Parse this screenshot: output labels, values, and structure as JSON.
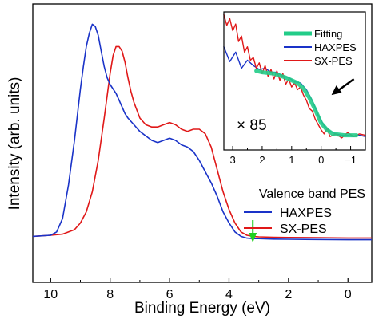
{
  "chart_data": [
    {
      "type": "line",
      "xlabel": "Binding Energy (eV)",
      "ylabel": "Intensity (arb. units)",
      "xlim": [
        10.6,
        -0.8
      ],
      "ylim": [
        0,
        1.0
      ],
      "x_ticks": [
        10,
        8,
        6,
        4,
        2,
        0
      ],
      "x_tick_labels": [
        "10",
        "8",
        "6",
        "4",
        "2",
        "0"
      ],
      "legend_title": "Valence band PES",
      "legend_position": "bottom-right",
      "series": [
        {
          "name": "HAXPES",
          "color": "#1a33c8",
          "x": [
            10.6,
            10.0,
            9.8,
            9.6,
            9.4,
            9.2,
            9.0,
            8.9,
            8.8,
            8.7,
            8.6,
            8.5,
            8.4,
            8.3,
            8.2,
            8.1,
            8.0,
            7.9,
            7.8,
            7.7,
            7.6,
            7.5,
            7.4,
            7.2,
            7.0,
            6.8,
            6.6,
            6.4,
            6.2,
            6.0,
            5.8,
            5.6,
            5.4,
            5.2,
            5.0,
            4.8,
            4.6,
            4.4,
            4.2,
            4.0,
            3.8,
            3.6,
            3.4,
            3.2,
            3.0,
            2.5,
            2.0,
            1.0,
            0.0,
            -0.8
          ],
          "y": [
            0.02,
            0.025,
            0.04,
            0.1,
            0.25,
            0.45,
            0.68,
            0.78,
            0.87,
            0.93,
            0.97,
            0.96,
            0.92,
            0.85,
            0.78,
            0.73,
            0.7,
            0.68,
            0.66,
            0.63,
            0.6,
            0.57,
            0.55,
            0.52,
            0.49,
            0.47,
            0.45,
            0.44,
            0.45,
            0.46,
            0.45,
            0.43,
            0.42,
            0.4,
            0.36,
            0.31,
            0.26,
            0.2,
            0.13,
            0.08,
            0.04,
            0.02,
            0.012,
            0.01,
            0.01,
            0.008,
            0.007,
            0.006,
            0.005,
            0.005
          ]
        },
        {
          "name": "SX-PES",
          "color": "#e01818",
          "x": [
            10.6,
            10.0,
            9.6,
            9.2,
            9.0,
            8.8,
            8.6,
            8.4,
            8.2,
            8.0,
            7.9,
            7.8,
            7.7,
            7.6,
            7.5,
            7.4,
            7.3,
            7.2,
            7.0,
            6.8,
            6.6,
            6.4,
            6.2,
            6.0,
            5.8,
            5.6,
            5.4,
            5.2,
            5.0,
            4.8,
            4.6,
            4.4,
            4.2,
            4.0,
            3.8,
            3.6,
            3.4,
            3.2,
            3.0,
            2.5,
            2.0,
            1.0,
            0.0,
            -0.8
          ],
          "y": [
            0.02,
            0.025,
            0.03,
            0.05,
            0.08,
            0.13,
            0.22,
            0.36,
            0.55,
            0.75,
            0.83,
            0.87,
            0.87,
            0.85,
            0.8,
            0.73,
            0.67,
            0.62,
            0.55,
            0.52,
            0.51,
            0.51,
            0.52,
            0.53,
            0.52,
            0.5,
            0.49,
            0.5,
            0.5,
            0.48,
            0.42,
            0.32,
            0.22,
            0.14,
            0.08,
            0.04,
            0.025,
            0.02,
            0.018,
            0.016,
            0.015,
            0.014,
            0.013,
            0.013
          ]
        }
      ],
      "annotations": [
        {
          "type": "arrow",
          "color": "#20d020",
          "x": 3.2,
          "direction": "down"
        }
      ]
    },
    {
      "type": "line",
      "role": "inset",
      "xlim": [
        3.3,
        -1.5
      ],
      "ylim": [
        0,
        1.0
      ],
      "x_ticks": [
        3,
        2,
        1,
        0,
        -1
      ],
      "x_tick_labels": [
        "3",
        "2",
        "1",
        "0",
        "−1"
      ],
      "scale_label": "× 85",
      "legend_position": "top-right",
      "series": [
        {
          "name": "Fitting",
          "color": "#22cc88",
          "x": [
            2.2,
            2.0,
            1.6,
            1.2,
            1.0,
            0.8,
            0.6,
            0.4,
            0.2,
            0.0,
            -0.2,
            -0.4,
            -0.8,
            -1.2
          ],
          "y": [
            0.56,
            0.55,
            0.54,
            0.51,
            0.49,
            0.47,
            0.43,
            0.36,
            0.27,
            0.17,
            0.12,
            0.09,
            0.08,
            0.08
          ]
        },
        {
          "name": "HAXPES",
          "color": "#1a33c8",
          "x": [
            3.3,
            3.1,
            2.9,
            2.7,
            2.5,
            2.3,
            2.1,
            1.9,
            1.7,
            1.5,
            1.3,
            1.1,
            0.9,
            0.7,
            0.5,
            0.3,
            0.1,
            -0.1,
            -0.3,
            -0.5,
            -0.7,
            -0.9,
            -1.1,
            -1.3,
            -1.5
          ],
          "y": [
            0.74,
            0.63,
            0.7,
            0.58,
            0.64,
            0.6,
            0.57,
            0.58,
            0.55,
            0.55,
            0.52,
            0.51,
            0.48,
            0.47,
            0.42,
            0.34,
            0.23,
            0.15,
            0.11,
            0.09,
            0.08,
            0.08,
            0.07,
            0.08,
            0.07
          ]
        },
        {
          "name": "SX-PES",
          "color": "#e01818",
          "x": [
            3.3,
            3.2,
            3.1,
            3.0,
            2.9,
            2.8,
            2.7,
            2.6,
            2.5,
            2.4,
            2.3,
            2.2,
            2.1,
            2.0,
            1.9,
            1.8,
            1.7,
            1.6,
            1.5,
            1.4,
            1.3,
            1.2,
            1.1,
            1.0,
            0.9,
            0.8,
            0.7,
            0.6,
            0.5,
            0.4,
            0.3,
            0.2,
            0.1,
            0.0,
            -0.1,
            -0.2,
            -0.3,
            -0.5,
            -0.7,
            -0.9,
            -1.1,
            -1.3,
            -1.5
          ],
          "y": [
            0.98,
            0.9,
            0.95,
            0.86,
            0.91,
            0.78,
            0.82,
            0.7,
            0.74,
            0.64,
            0.66,
            0.58,
            0.62,
            0.54,
            0.6,
            0.52,
            0.57,
            0.5,
            0.56,
            0.49,
            0.54,
            0.46,
            0.5,
            0.44,
            0.47,
            0.42,
            0.44,
            0.38,
            0.34,
            0.28,
            0.26,
            0.2,
            0.16,
            0.12,
            0.09,
            0.13,
            0.07,
            0.09,
            0.06,
            0.1,
            0.07,
            0.09,
            0.08
          ]
        }
      ],
      "annotations": [
        {
          "type": "arrow",
          "color": "#000000",
          "x": -0.35,
          "y": 0.38,
          "direction": "down-left"
        }
      ]
    }
  ]
}
